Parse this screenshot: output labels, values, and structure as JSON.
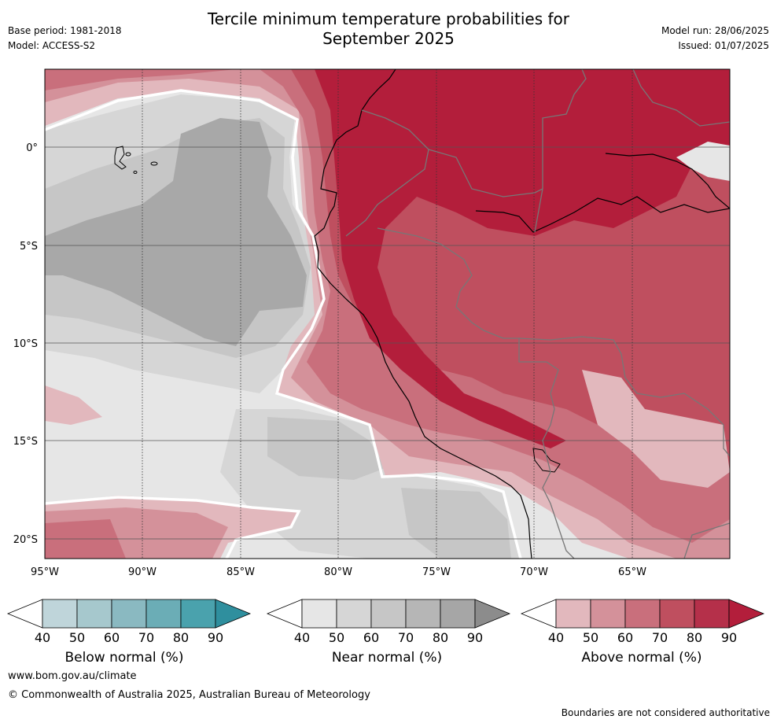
{
  "header": {
    "title_line1": "Tercile minimum temperature probabilities for",
    "title_line2": "September 2025",
    "base_period": "Base period: 1981-2018",
    "model": "Model: ACCESS-S2",
    "model_run": "Model run: 28/06/2025",
    "issued": "Issued: 01/07/2025"
  },
  "map": {
    "lon_range": [
      -95,
      -60
    ],
    "lat_range": [
      -21,
      4
    ],
    "lon_ticks": [
      "95°W",
      "90°W",
      "85°W",
      "80°W",
      "75°W",
      "70°W",
      "65°W"
    ],
    "lat_ticks": [
      "0°",
      "5°S",
      "10°S",
      "15°S",
      "20°S"
    ],
    "colors": {
      "near_40": "#e6e6e6",
      "near_50": "#d6d6d6",
      "near_60": "#c6c6c6",
      "near_70": "#a8a8a8",
      "above_40": "#e2b8bd",
      "above_50": "#d4919a",
      "above_60": "#c96f7c",
      "above_70": "#bf4f5f",
      "above_80": "#b31e3b"
    }
  },
  "colorbars": [
    {
      "label": "Below normal (%)",
      "ticks": [
        "40",
        "50",
        "60",
        "70",
        "80",
        "90"
      ],
      "colors": [
        "#ffffff",
        "#bfd5da",
        "#a6c8cd",
        "#8ab9c1",
        "#6badb6",
        "#4aa2ad",
        "#2f8f9e"
      ]
    },
    {
      "label": "Near normal (%)",
      "ticks": [
        "40",
        "50",
        "60",
        "70",
        "80",
        "90"
      ],
      "colors": [
        "#ffffff",
        "#e6e6e6",
        "#d6d6d6",
        "#c6c6c6",
        "#b6b6b6",
        "#a6a6a6",
        "#8c8c8c"
      ]
    },
    {
      "label": "Above normal (%)",
      "ticks": [
        "40",
        "50",
        "60",
        "70",
        "80",
        "90"
      ],
      "colors": [
        "#ffffff",
        "#e2b8bd",
        "#d4919a",
        "#c96f7c",
        "#bf4f5f",
        "#b5304a",
        "#b31e3b"
      ]
    }
  ],
  "footer": {
    "website": "www.bom.gov.au/climate",
    "copyright": "© Commonwealth of Australia 2025, Australian Bureau of Meteorology",
    "disclaimer": "Boundaries are not considered authoritative"
  }
}
